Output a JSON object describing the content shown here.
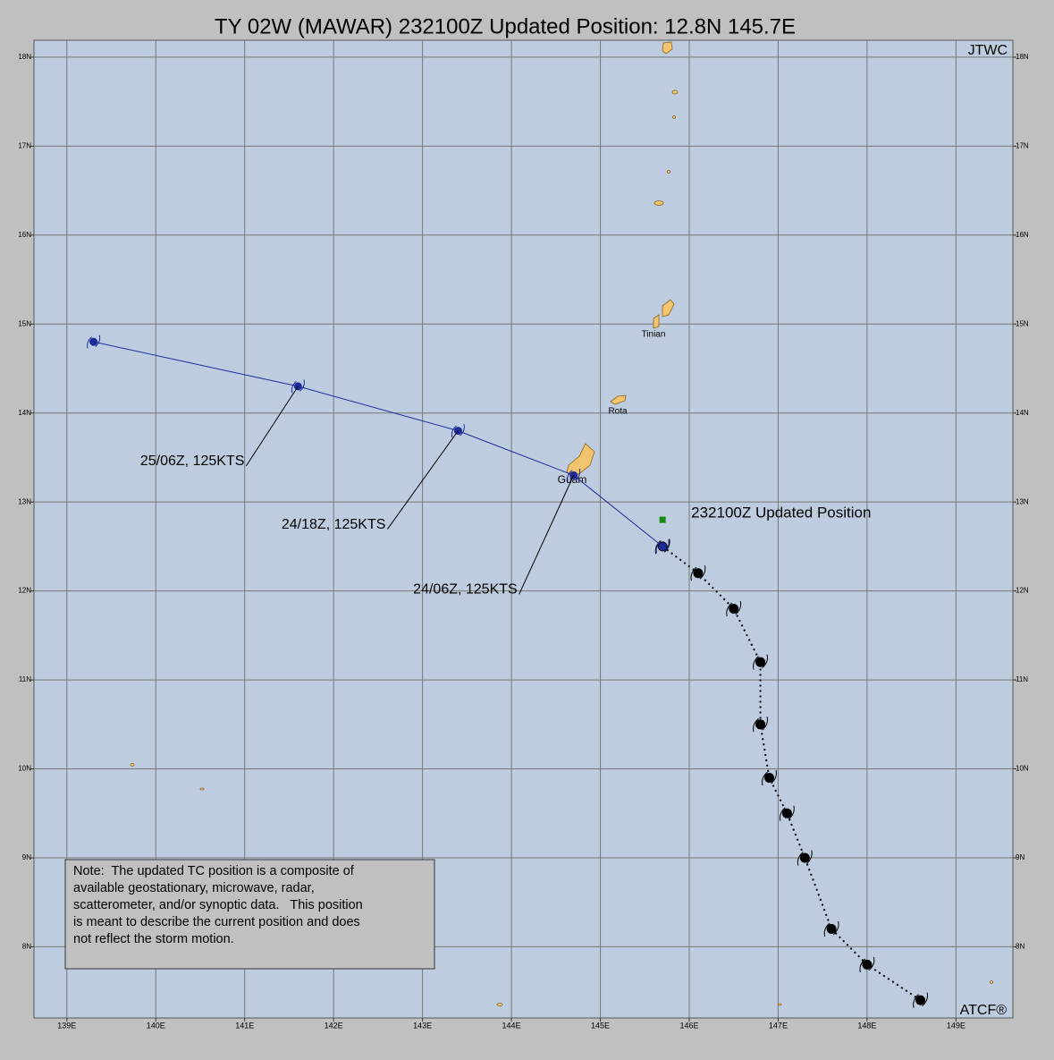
{
  "title": "TY 02W (MAWAR) 232100Z Updated Position: 12.8N 145.7E",
  "agency": "JTWC",
  "credit": "ATCF®",
  "note": {
    "lines": [
      "Note:  The updated TC position is a composite of",
      "available geostationary, microwave, radar,",
      "scatterometer, and/or synoptic data.   This position",
      "is meant to describe the current position and does",
      "not reflect the storm motion."
    ]
  },
  "places": [
    {
      "name": "Tinian"
    },
    {
      "name": "Rota"
    },
    {
      "name": "Guam"
    }
  ],
  "map": {
    "xlim": [
      138.63,
      149.64
    ],
    "ylim": [
      7.2,
      18.19
    ],
    "grid": true,
    "xticks": [
      {
        "value": 139,
        "label": "139E"
      },
      {
        "value": 140,
        "label": "140E"
      },
      {
        "value": 141,
        "label": "141E"
      },
      {
        "value": 142,
        "label": "142E"
      },
      {
        "value": 143,
        "label": "143E"
      },
      {
        "value": 144,
        "label": "144E"
      },
      {
        "value": 145,
        "label": "145E"
      },
      {
        "value": 146,
        "label": "146E"
      },
      {
        "value": 147,
        "label": "147E"
      },
      {
        "value": 148,
        "label": "148E"
      },
      {
        "value": 149,
        "label": "149E"
      }
    ],
    "yticks": [
      {
        "value": 8,
        "label": "8N"
      },
      {
        "value": 9,
        "label": "9N"
      },
      {
        "value": 10,
        "label": "10N"
      },
      {
        "value": 11,
        "label": "11N"
      },
      {
        "value": 12,
        "label": "12N"
      },
      {
        "value": 13,
        "label": "13N"
      },
      {
        "value": 14,
        "label": "14N"
      },
      {
        "value": 15,
        "label": "15N"
      },
      {
        "value": 16,
        "label": "16N"
      },
      {
        "value": 17,
        "label": "17N"
      },
      {
        "value": 18,
        "label": "18N"
      }
    ],
    "past_track": {
      "color": "#000000",
      "lat": [
        12.5,
        12.2,
        11.8,
        11.2,
        10.5,
        9.9,
        9.5,
        9.0,
        8.2,
        7.8,
        7.4
      ],
      "lon": [
        145.7,
        146.1,
        146.5,
        146.8,
        146.8,
        146.9,
        147.1,
        147.3,
        147.6,
        148.0,
        148.6
      ]
    },
    "forecast_track": {
      "color": "#1c2a9a",
      "lat": [
        12.5,
        13.3,
        13.8,
        14.3,
        14.8
      ],
      "lon": [
        145.7,
        144.7,
        143.4,
        141.6,
        139.3
      ],
      "labels": [
        null,
        "24/06Z, 125KTS",
        "24/18Z, 125KTS",
        "25/06Z, 125KTS",
        null
      ]
    },
    "updated_position": {
      "label": "232100Z Updated Position",
      "lat": 12.8,
      "lon": 145.7,
      "color": "#128c12"
    }
  }
}
